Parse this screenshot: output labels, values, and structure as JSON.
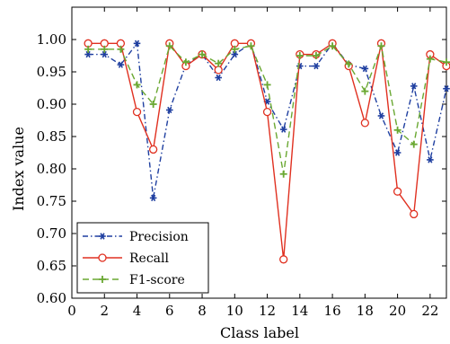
{
  "chart_data": {
    "type": "line",
    "title": "",
    "xlabel": "Class label",
    "ylabel": "Index value",
    "xlim": [
      0,
      23
    ],
    "ylim": [
      0.6,
      1.05
    ],
    "x_ticks": [
      0,
      2,
      4,
      6,
      8,
      10,
      12,
      14,
      16,
      18,
      20,
      22
    ],
    "x_tick_labels": [
      "0",
      "2",
      "4",
      "6",
      "8",
      "10",
      "12",
      "14",
      "16",
      "18",
      "20",
      "22"
    ],
    "y_ticks": [
      0.6,
      0.65,
      0.7,
      0.75,
      0.8,
      0.85,
      0.9,
      0.95,
      1.0
    ],
    "y_tick_labels": [
      "0.60",
      "0.65",
      "0.70",
      "0.75",
      "0.80",
      "0.85",
      "0.90",
      "0.95",
      "1.00"
    ],
    "grid": false,
    "legend_position": "bottom-left",
    "x": [
      1,
      2,
      3,
      4,
      5,
      6,
      7,
      8,
      9,
      10,
      11,
      12,
      13,
      14,
      15,
      16,
      17,
      18,
      19,
      20,
      21,
      22,
      23
    ],
    "series": [
      {
        "name": "Precision",
        "color": "#1f3fa0",
        "style": "dashdot",
        "marker": "asterisk",
        "values": [
          0.977,
          0.977,
          0.961,
          0.994,
          0.755,
          0.891,
          0.961,
          0.977,
          0.941,
          0.977,
          0.994,
          0.904,
          0.861,
          0.959,
          0.959,
          0.994,
          0.961,
          0.955,
          0.882,
          0.825,
          0.928,
          0.814,
          0.924
        ]
      },
      {
        "name": "Recall",
        "color": "#e03020",
        "style": "solid",
        "marker": "circle",
        "values": [
          0.994,
          0.994,
          0.994,
          0.888,
          0.83,
          0.994,
          0.959,
          0.977,
          0.953,
          0.994,
          0.994,
          0.888,
          0.66,
          0.977,
          0.977,
          0.994,
          0.959,
          0.871,
          0.994,
          0.765,
          0.73,
          0.977,
          0.959
        ]
      },
      {
        "name": "F1-score",
        "color": "#6aa832",
        "style": "dashed",
        "marker": "plus",
        "values": [
          0.985,
          0.985,
          0.985,
          0.93,
          0.9,
          0.99,
          0.965,
          0.977,
          0.963,
          0.985,
          0.99,
          0.93,
          0.792,
          0.975,
          0.975,
          0.99,
          0.962,
          0.92,
          0.99,
          0.86,
          0.838,
          0.97,
          0.965
        ]
      }
    ]
  }
}
